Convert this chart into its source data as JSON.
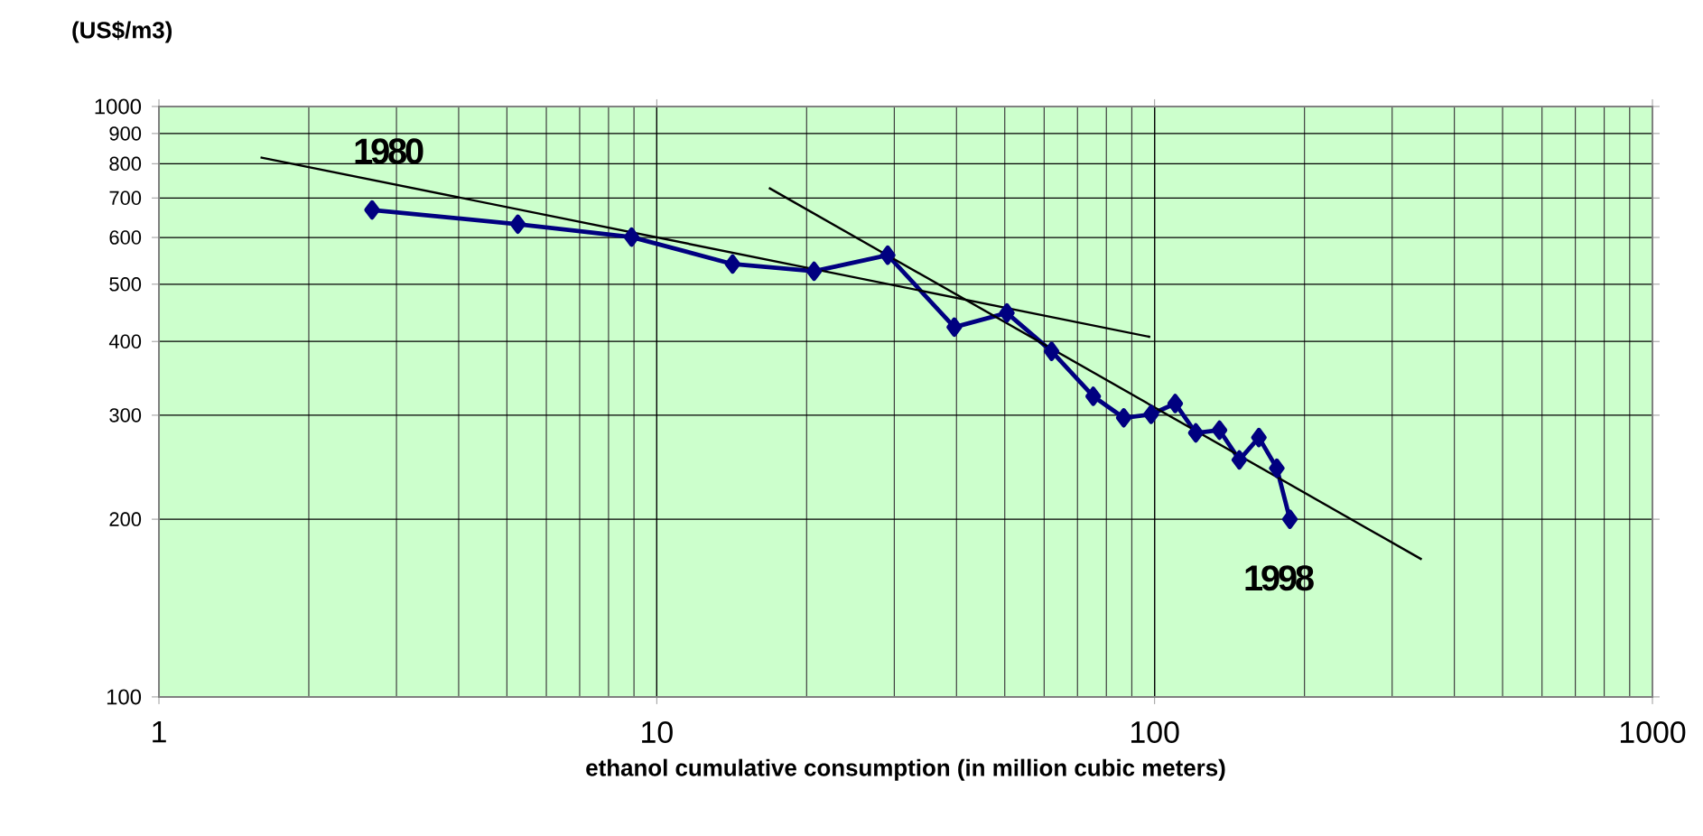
{
  "chart_data": {
    "type": "line",
    "xlabel": "ethanol cumulative consumption  (in million cubic meters)",
    "ylabel": "(US$/m3)",
    "log": "xy",
    "grid": true,
    "xlim": [
      1,
      1000
    ],
    "xticks": [
      1,
      10,
      100,
      1000
    ],
    "ylim": [
      100,
      1000
    ],
    "yticks": [
      100,
      200,
      300,
      400,
      500,
      600,
      700,
      800,
      900,
      1000
    ],
    "series": [
      {
        "color": "#000080",
        "marker": "diamond",
        "line_style": "solid",
        "x": [
          2.68,
          5.26,
          8.9,
          14.2,
          20.7,
          29.1,
          39.6,
          50.5,
          62.1,
          75.3,
          86.7,
          98.4,
          110,
          121,
          135,
          148,
          162,
          176,
          187
        ],
        "values": [
          668,
          632,
          601,
          541,
          526,
          560,
          423,
          447,
          385,
          323,
          297,
          301,
          314,
          280,
          283,
          252,
          275,
          244,
          200
        ]
      },
      {
        "color": "#000000",
        "marker": "none",
        "line_style": "solid",
        "x": [
          1.6,
          98
        ],
        "values": [
          820,
          407
        ]
      },
      {
        "color": "#000000",
        "marker": "none",
        "line_style": "solid",
        "x": [
          16.8,
          344
        ],
        "values": [
          728,
          171
        ]
      }
    ],
    "annotations": [
      {
        "text": "1980",
        "x": 2.68,
        "y": 668
      },
      {
        "text": "1998",
        "x": 187,
        "y": 200
      }
    ]
  }
}
